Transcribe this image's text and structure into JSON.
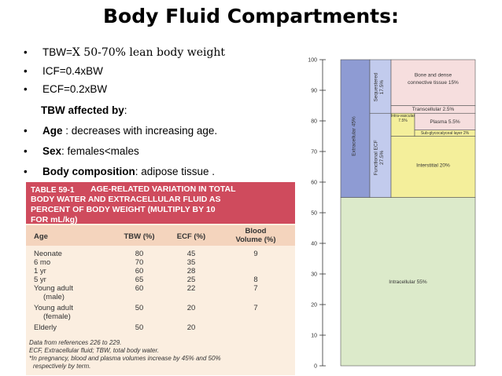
{
  "title": "Body Fluid Compartments:",
  "bullets": {
    "tbw_prefix": "TBW=",
    "tbw_rest": "X 50-70% lean body weight",
    "icf": "ICF=0.4xBW",
    "ecf": "ECF=0.2xBW",
    "affected_label": "TBW affected by",
    "affected_colon": ":",
    "age_label": "Age",
    "age_text": " : decreases with increasing age.",
    "sex_label": "Sex",
    "sex_text": ": females<males",
    "body_label": "Body composition",
    "body_text": ": adipose tissue ."
  },
  "table": {
    "number": "TABLE 59-1",
    "title_lines": [
      "AGE-RELATED VARIATION IN TOTAL",
      "BODY WATER AND EXTRACELLULAR FLUID AS",
      "PERCENT OF BODY WEIGHT (MULTIPLY BY 10"
    ],
    "title_last": "FOR mL/kg)",
    "headers": {
      "age": "Age",
      "tbw": "TBW (%)",
      "ecf": "ECF (%)",
      "blood1": "Blood",
      "blood2": "Volume (%)"
    },
    "rows": [
      {
        "age": "Neonate",
        "tbw": "80",
        "ecf": "45",
        "blood": "9"
      },
      {
        "age": "6 mo",
        "tbw": "70",
        "ecf": "35",
        "blood": ""
      },
      {
        "age": "1 yr",
        "tbw": "60",
        "ecf": "28",
        "blood": ""
      },
      {
        "age": "5 yr",
        "tbw": "65",
        "ecf": "25",
        "blood": "8"
      },
      {
        "age": "Young adult",
        "age2": "(male)",
        "tbw": "60",
        "ecf": "22",
        "blood": "7"
      },
      {
        "age": "Young adult",
        "age2": "(female)",
        "tbw": "50",
        "ecf": "20",
        "blood": "7"
      },
      {
        "age": "Elderly",
        "tbw": "50",
        "ecf": "20",
        "blood": ""
      }
    ],
    "notes": [
      "Data from references 226 to 229.",
      "ECF, Extracellular fluid; TBW, total body water.",
      "*In pregnancy, blood and plasma volumes increase by 45% and 50%",
      "respectively by term."
    ]
  },
  "chart_data": {
    "type": "bar",
    "ylim": [
      0,
      100
    ],
    "yticks": [
      "0",
      "10",
      "20",
      "30",
      "40",
      "50",
      "60",
      "70",
      "80",
      "90",
      "100"
    ],
    "segments": [
      {
        "label": "Intracellular 55%",
        "from": 0,
        "to": 55,
        "color": "#dceaca"
      },
      {
        "label": "Extracellular 45%",
        "from": 55,
        "to": 100,
        "color": "#8e9bd3"
      },
      {
        "label": "Functional ECF 27.5%",
        "from": 55,
        "to": 82.5,
        "color": "#c2cbed"
      },
      {
        "label": "Sequestered 17.5%",
        "from": 82.5,
        "to": 100,
        "color": "#c2cbed"
      },
      {
        "label": "Interstitial 20%",
        "from": 55,
        "to": 75,
        "color": "#f4ef9b"
      },
      {
        "label": "Intra-vascular 7.5%",
        "from": 75,
        "to": 82.5,
        "color": "#f4ef9b"
      },
      {
        "label": "Plasma 5.5%",
        "from": 77,
        "to": 82.5,
        "color": "#f6dede"
      },
      {
        "label": "Sub-glycocalyceal layer 2%",
        "from": 75,
        "to": 77,
        "color": "#f4ef9b"
      },
      {
        "label": "Transcellular 2.5%",
        "from": 82.5,
        "to": 85,
        "color": "#f6dede"
      },
      {
        "label": "Bone and dense connective tissue 15%",
        "from": 85,
        "to": 100,
        "color": "#f6dede"
      }
    ]
  }
}
